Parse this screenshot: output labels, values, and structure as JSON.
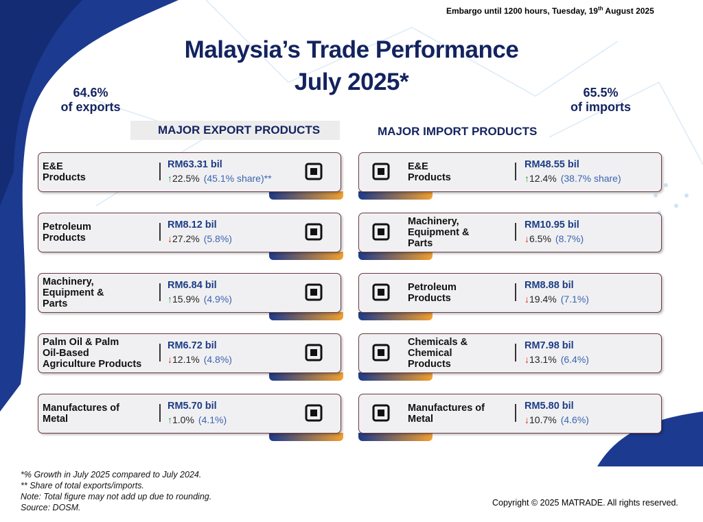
{
  "embargo": [
    "Embargo until 1200 hours, Tuesday, 19",
    "th",
    " August 2025"
  ],
  "title": [
    "Malaysia’s Trade Performance",
    "July 2025*"
  ],
  "exports_summary": {
    "value": "64.6%",
    "label": "of exports"
  },
  "imports_summary": {
    "value": "65.5%",
    "label": "of imports"
  },
  "exports": {
    "heading": "MAJOR EXPORT PRODUCTS",
    "items": [
      {
        "name": "E&E\nProducts",
        "value": "RM63.31 bil",
        "growth": "↑22.5%",
        "share": "(45.1% share)**"
      },
      {
        "name": "Petroleum\nProducts",
        "value": "RM8.12 bil",
        "growth": "↓27.2%",
        "share": "(5.8%)"
      },
      {
        "name": "Machinery,\nEquipment &\nParts",
        "value": "RM6.84 bil",
        "growth": "↑15.9%",
        "share": "(4.9%)"
      },
      {
        "name": "Palm Oil & Palm\nOil-Based\nAgriculture Products",
        "value": "RM6.72 bil",
        "growth": "↓12.1%",
        "share": "(4.8%)"
      },
      {
        "name": "Manufactures of\nMetal",
        "value": "RM5.70 bil",
        "growth": "↑1.0%",
        "share": "(4.1%)"
      }
    ]
  },
  "imports": {
    "heading": "MAJOR IMPORT PRODUCTS",
    "items": [
      {
        "name": "E&E\nProducts",
        "value": "RM48.55 bil",
        "growth": "↑12.4%",
        "share": "(38.7% share)"
      },
      {
        "name": "Machinery,\nEquipment &\nParts",
        "value": "RM10.95 bil",
        "growth": "↓6.5%",
        "share": "(8.7%)"
      },
      {
        "name": "Petroleum\nProducts",
        "value": "RM8.88 bil",
        "growth": "↓19.4%",
        "share": "(7.1%)"
      },
      {
        "name": "Chemicals &\nChemical\nProducts",
        "value": "RM7.98 bil",
        "growth": "↓13.1%",
        "share": "(6.4%)"
      },
      {
        "name": "Manufactures of\nMetal",
        "value": "RM5.80 bil",
        "growth": "↓10.7%",
        "share": "(4.6%)"
      }
    ]
  },
  "footnotes": [
    "*% Growth in July 2025 compared to July 2024.",
    "** Share of total exports/imports.",
    "Note: Total figure may not add up due to rounding.",
    "Source: DOSM."
  ],
  "copyright": "Copyright © 2025 MATRADE. All rights reserved."
}
